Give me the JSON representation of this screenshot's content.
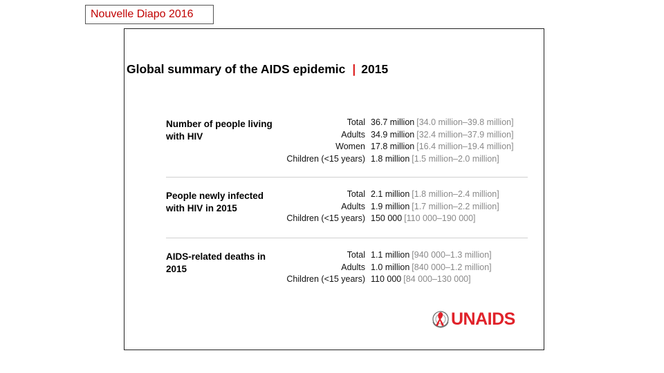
{
  "tag_label": "Nouvelle Diapo 2016",
  "title": {
    "main": "Global summary of the AIDS epidemic",
    "separator": "|",
    "year": "2015"
  },
  "sections": [
    {
      "heading": "Number of people living with HIV",
      "rows": [
        {
          "label": "Total",
          "value": "36.7 million",
          "range": "[34.0 million–39.8 million]"
        },
        {
          "label": "Adults",
          "value": "34.9 million",
          "range": "[32.4 million–37.9 million]"
        },
        {
          "label": "Women",
          "value": "17.8 million",
          "range": "[16.4 million–19.4 million]"
        },
        {
          "label": "Children (<15 years)",
          "value": "1.8 million",
          "range": "[1.5 million–2.0 million]"
        }
      ]
    },
    {
      "heading": "People newly infected with HIV in 2015",
      "rows": [
        {
          "label": "Total",
          "value": "2.1 million",
          "range": "[1.8 million–2.4 million]"
        },
        {
          "label": "Adults",
          "value": "1.9 million",
          "range": "[1.7 million–2.2 million]"
        },
        {
          "label": "Children (<15 years)",
          "value": "150 000",
          "range": "[110 000–190 000]"
        }
      ]
    },
    {
      "heading": "AIDS-related deaths in 2015",
      "rows": [
        {
          "label": "Total",
          "value": "1.1 million",
          "range": "[940 000–1.3 million]"
        },
        {
          "label": "Adults",
          "value": "1.0 million",
          "range": "[840 000–1.2 million]"
        },
        {
          "label": "Children (<15 years)",
          "value": "110 000",
          "range": "[84 000–130 000]"
        }
      ]
    }
  ],
  "logo": {
    "text": "UNAIDS",
    "icon": "un-emblem-ribbon-icon",
    "color": "#e0222a"
  },
  "colors": {
    "accent": "#d22222",
    "range_text": "#8a8a8a",
    "tag_text": "#c00000"
  }
}
